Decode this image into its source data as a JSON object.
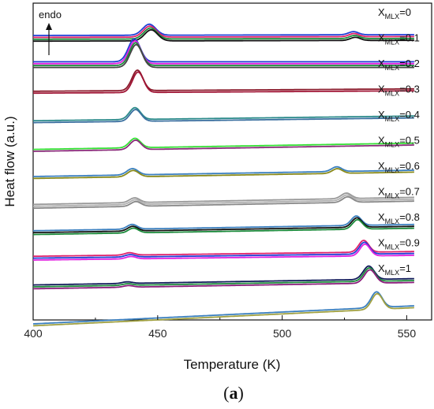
{
  "chart_data": {
    "type": "line",
    "xlabel": "Temperature (K)",
    "ylabel": "Heat flow (a.u.)",
    "xlim": [
      400,
      560
    ],
    "x_ticks": [
      400,
      450,
      500,
      550
    ],
    "y_ticks_labeled": false,
    "grid": false,
    "annotation": "endo",
    "panel_label": "(a)",
    "label_prefix": "X",
    "label_subscript": "MLX",
    "curves": [
      {
        "label_value": "=0",
        "baseline_start": 43,
        "baseline_end": 44,
        "peaks": [
          {
            "x": 447,
            "h": 14,
            "w": 2.6
          },
          {
            "x": 529,
            "h": 4,
            "w": 2.0
          }
        ],
        "colors": [
          "#1f3fd6",
          "#e0206a",
          "#1a8a3a",
          "#111111"
        ]
      },
      {
        "label_value": "=0.1",
        "baseline_start": 28,
        "baseline_end": 28,
        "peaks": [
          {
            "x": 441,
            "h": 29,
            "w": 2.4
          }
        ],
        "colors": [
          "#1f3fd6",
          "#e020e0",
          "#1a8a3a",
          "#444444"
        ]
      },
      {
        "label_value": "=0.2",
        "baseline_start": 20,
        "baseline_end": 23,
        "peaks": [
          {
            "x": 442,
            "h": 26,
            "w": 2.2
          }
        ],
        "colors": [
          "#8b1a2b",
          "#a01535"
        ]
      },
      {
        "label_value": "=0.3",
        "baseline_start": 18,
        "baseline_end": 24,
        "peaks": [
          {
            "x": 441,
            "h": 15,
            "w": 2.2
          }
        ],
        "colors": [
          "#2a8a8a",
          "#3a6f9f"
        ]
      },
      {
        "label_value": "=0.4",
        "baseline_start": 20,
        "baseline_end": 28,
        "peaks": [
          {
            "x": 441,
            "h": 12,
            "w": 2.2
          }
        ],
        "colors": [
          "#33e033",
          "#8a2a7a"
        ]
      },
      {
        "label_value": "=0.5",
        "baseline_start": 18,
        "baseline_end": 26,
        "peaks": [
          {
            "x": 440,
            "h": 8,
            "w": 2.2
          },
          {
            "x": 522,
            "h": 6,
            "w": 2.0
          }
        ],
        "colors": [
          "#3a7fbf",
          "#8a8a1a"
        ]
      },
      {
        "label_value": "=0.6",
        "baseline_start": 18,
        "baseline_end": 27,
        "peaks": [
          {
            "x": 441,
            "h": 6,
            "w": 2.0
          },
          {
            "x": 526,
            "h": 7,
            "w": 2.0
          }
        ],
        "colors": [
          "#999999",
          "#b0b0b0",
          "#888888"
        ]
      },
      {
        "label_value": "=0.7",
        "baseline_start": 18,
        "baseline_end": 26,
        "peaks": [
          {
            "x": 440,
            "h": 6,
            "w": 2.0
          },
          {
            "x": 530,
            "h": 12,
            "w": 2.0
          }
        ],
        "colors": [
          "#3a7fbf",
          "#111111",
          "#1a8a3a"
        ]
      },
      {
        "label_value": "=0.8",
        "baseline_start": 18,
        "baseline_end": 24,
        "peaks": [
          {
            "x": 439,
            "h": 3,
            "w": 2.0
          },
          {
            "x": 533,
            "h": 15,
            "w": 2.0
          }
        ],
        "colors": [
          "#e0206a",
          "#1f3fd6",
          "#e020e0"
        ]
      },
      {
        "label_value": "=0.9",
        "baseline_start": 17,
        "baseline_end": 25,
        "peaks": [
          {
            "x": 438,
            "h": 2,
            "w": 2.0
          },
          {
            "x": 535,
            "h": 17,
            "w": 2.2
          }
        ],
        "colors": [
          "#111a5a",
          "#1a8a3a",
          "#8a1a7a"
        ]
      },
      {
        "label_value": "=1",
        "baseline_start": 0,
        "baseline_end": 23,
        "peaks": [
          {
            "x": 538,
            "h": 20,
            "w": 2.2
          }
        ],
        "colors": [
          "#3a7fbf",
          "#a0a040"
        ]
      }
    ]
  }
}
